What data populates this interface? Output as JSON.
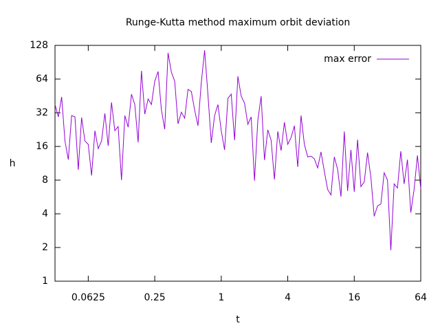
{
  "chart_data": {
    "type": "line",
    "title": "Runge-Kutta method maximum orbit deviation",
    "xlabel": "t",
    "ylabel": "h",
    "xscale": "log",
    "yscale": "log",
    "xlim": [
      0.03125,
      64
    ],
    "ylim": [
      1,
      128
    ],
    "xticks": [
      0.0625,
      0.25,
      1,
      4,
      16,
      64
    ],
    "yticks": [
      1,
      2,
      4,
      8,
      16,
      32,
      64,
      128
    ],
    "legend": "top-right",
    "x": [
      0.03125,
      0.03349,
      0.0359,
      0.03847,
      0.04123,
      0.04419,
      0.04737,
      0.05077,
      0.05441,
      0.05832,
      0.0625,
      0.06699,
      0.0718,
      0.07694,
      0.08247,
      0.08839,
      0.09473,
      0.1015,
      0.1088,
      0.1166,
      0.125,
      0.134,
      0.1436,
      0.1539,
      0.1649,
      0.1768,
      0.1895,
      0.2031,
      0.2176,
      0.2333,
      0.25,
      0.268,
      0.2872,
      0.3078,
      0.3299,
      0.3536,
      0.3789,
      0.4061,
      0.4353,
      0.4665,
      0.5,
      0.5359,
      0.5743,
      0.6156,
      0.6598,
      0.7071,
      0.7579,
      0.8123,
      0.8706,
      0.933,
      1,
      1.072,
      1.149,
      1.231,
      1.32,
      1.414,
      1.516,
      1.625,
      1.741,
      1.866,
      2,
      2.144,
      2.297,
      2.462,
      2.639,
      2.828,
      3.031,
      3.249,
      3.482,
      3.732,
      4,
      4.287,
      4.595,
      4.925,
      5.278,
      5.657,
      6.063,
      6.498,
      6.964,
      7.464,
      8,
      8.574,
      9.19,
      9.849,
      10.56,
      11.31,
      12.13,
      13,
      13.93,
      14.93,
      16,
      17.15,
      18.38,
      19.7,
      21.11,
      22.63,
      24.25,
      25.99,
      27.86,
      29.86,
      32,
      34.3,
      36.76,
      39.4,
      42.22,
      45.25,
      48.5,
      51.98,
      55.72,
      59.71,
      64
    ],
    "series": [
      {
        "name": "max error",
        "color": "#9400d3",
        "values": [
          37.9,
          29.4,
          44.3,
          17.9,
          12.2,
          30.2,
          29.4,
          9.9,
          29.0,
          17.9,
          16.7,
          8.8,
          22.1,
          15.3,
          17.9,
          31.6,
          16.2,
          39.6,
          22.1,
          24.1,
          8.0,
          30.2,
          23.8,
          46.9,
          37.9,
          17.4,
          75.8,
          31.1,
          42.5,
          37.9,
          61.3,
          74.8,
          33.9,
          22.8,
          109.6,
          73.7,
          61.3,
          25.5,
          32.4,
          28.6,
          51.8,
          49.6,
          33.9,
          24.5,
          59.6,
          115.9,
          46.2,
          17.2,
          30.2,
          37.9,
          22.1,
          14.9,
          43.1,
          46.9,
          18.2,
          67.7,
          45.0,
          39.0,
          25.2,
          29.4,
          7.9,
          27.4,
          45.0,
          12.1,
          22.5,
          18.2,
          8.1,
          21.8,
          14.7,
          26.3,
          16.7,
          19.2,
          24.5,
          10.5,
          30.2,
          16.7,
          12.9,
          13.1,
          12.4,
          10.3,
          14.3,
          9.6,
          6.6,
          5.9,
          12.9,
          10.0,
          5.7,
          21.8,
          6.4,
          14.9,
          6.3,
          18.4,
          7.0,
          7.7,
          14.1,
          8.5,
          3.8,
          4.7,
          4.9,
          9.3,
          8.0,
          1.89,
          7.4,
          6.8,
          14.5,
          7.4,
          12.2,
          4.1,
          6.6,
          13.3,
          6.7
        ]
      }
    ]
  }
}
